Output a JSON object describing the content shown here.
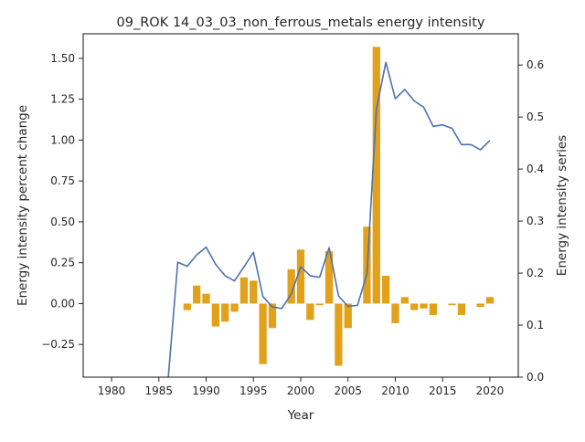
{
  "chart_data": {
    "type": "bar+line",
    "title": "09_ROK 14_03_03_non_ferrous_metals energy intensity",
    "xlabel": "Year",
    "ylabel_left": "Energy intensity percent change",
    "ylabel_right": "Energy intensity series",
    "xlim": [
      1977,
      2023
    ],
    "ylim_left": [
      -0.45,
      1.65
    ],
    "ylim_right": [
      0.0,
      0.66
    ],
    "x_ticks": [
      1980,
      1985,
      1990,
      1995,
      2000,
      2005,
      2010,
      2015,
      2020
    ],
    "y_left_ticks": [
      -0.25,
      0.0,
      0.25,
      0.5,
      0.75,
      1.0,
      1.25,
      1.5
    ],
    "y_left_tick_labels": [
      "−0.25",
      "0.00",
      "0.25",
      "0.50",
      "0.75",
      "1.00",
      "1.25",
      "1.50"
    ],
    "y_right_ticks": [
      0.0,
      0.1,
      0.2,
      0.3,
      0.4,
      0.5,
      0.6
    ],
    "y_right_tick_labels": [
      "0.0",
      "0.1",
      "0.2",
      "0.3",
      "0.4",
      "0.5",
      "0.6"
    ],
    "grid": false,
    "bar_series": {
      "axis": "left",
      "color": "#e1a11a",
      "x": [
        1988,
        1989,
        1990,
        1991,
        1992,
        1993,
        1994,
        1995,
        1996,
        1997,
        1998,
        1999,
        2000,
        2001,
        2002,
        2003,
        2004,
        2005,
        2006,
        2007,
        2008,
        2009,
        2010,
        2011,
        2012,
        2013,
        2014,
        2015,
        2016,
        2017,
        2018,
        2019,
        2020
      ],
      "values": [
        -0.04,
        0.11,
        0.06,
        -0.14,
        -0.11,
        -0.05,
        0.16,
        0.14,
        -0.37,
        -0.15,
        0.0,
        0.21,
        0.33,
        -0.1,
        -0.01,
        0.32,
        -0.38,
        -0.15,
        0.0,
        0.47,
        1.57,
        0.17,
        -0.12,
        0.04,
        -0.04,
        -0.03,
        -0.07,
        0.0,
        -0.01,
        -0.07,
        0.0,
        -0.02,
        0.04
      ]
    },
    "line_series": {
      "axis": "right",
      "color": "#4c72b0",
      "x": [
        1986,
        1987,
        1988,
        1989,
        1990,
        1991,
        1992,
        1993,
        1994,
        1995,
        1996,
        1997,
        1998,
        1999,
        2000,
        2001,
        2002,
        2003,
        2004,
        2005,
        2006,
        2007,
        2008,
        2009,
        2010,
        2011,
        2012,
        2013,
        2014,
        2015,
        2016,
        2017,
        2018,
        2019,
        2020
      ],
      "values": [
        0.0,
        0.221,
        0.213,
        0.235,
        0.25,
        0.217,
        0.195,
        0.185,
        0.212,
        0.24,
        0.155,
        0.135,
        0.132,
        0.16,
        0.212,
        0.195,
        0.192,
        0.249,
        0.156,
        0.136,
        0.138,
        0.198,
        0.515,
        0.605,
        0.535,
        0.553,
        0.531,
        0.519,
        0.482,
        0.485,
        0.478,
        0.447,
        0.447,
        0.437,
        0.455
      ]
    }
  }
}
